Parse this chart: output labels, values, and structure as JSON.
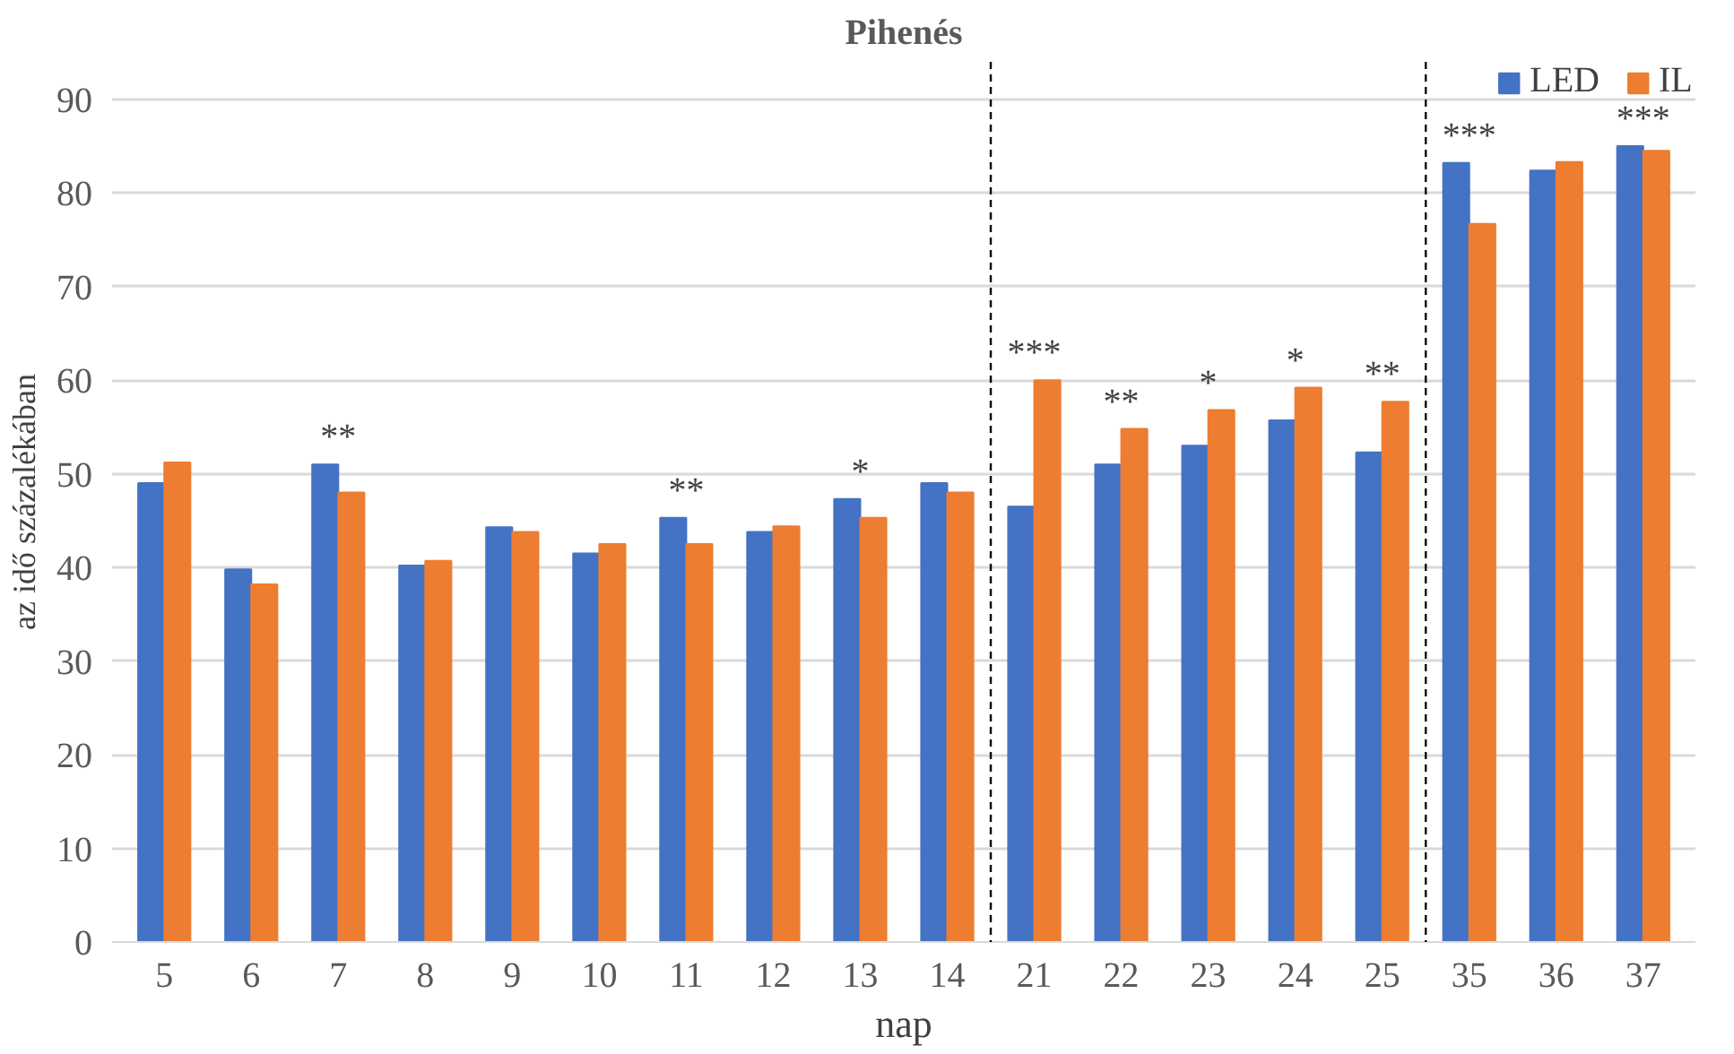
{
  "chart_data": {
    "type": "bar",
    "title": "Pihenés",
    "xlabel": "nap",
    "ylabel": "az idő százalékában",
    "categories": [
      "5",
      "6",
      "7",
      "8",
      "9",
      "10",
      "11",
      "12",
      "13",
      "14",
      "21",
      "22",
      "23",
      "24",
      "25",
      "35",
      "36",
      "37"
    ],
    "series": [
      {
        "name": "LED",
        "color": "#4472c4",
        "values": [
          49,
          39.8,
          51,
          40.2,
          44.3,
          41.5,
          45.3,
          43.8,
          47.3,
          49,
          46.5,
          51,
          53,
          55.7,
          52.3,
          83.2,
          82.4,
          85
        ]
      },
      {
        "name": "IL",
        "color": "#ed7d31",
        "values": [
          51.2,
          38.2,
          48,
          40.7,
          43.8,
          42.5,
          42.5,
          44.4,
          45.3,
          48,
          60,
          54.8,
          56.8,
          59.2,
          57.7,
          76.7,
          83.3,
          84.5
        ]
      }
    ],
    "ylim": [
      0,
      90
    ],
    "yticks": [
      0,
      10,
      20,
      30,
      40,
      50,
      60,
      70,
      80,
      90
    ],
    "grid": "y",
    "legend": "top right",
    "annotations": [
      {
        "text": "**",
        "x": "7",
        "y": 51
      },
      {
        "text": "**",
        "x": "11",
        "y": 45.3
      },
      {
        "text": "*",
        "x": "13",
        "y": 47.3
      },
      {
        "text": "***",
        "x": "21",
        "y": 60
      },
      {
        "text": "**",
        "x": "22",
        "y": 54.8
      },
      {
        "text": "*",
        "x": "23",
        "y": 56.8
      },
      {
        "text": "*",
        "x": "24",
        "y": 59.2
      },
      {
        "text": "**",
        "x": "25",
        "y": 57.7
      },
      {
        "text": "***",
        "x": "35",
        "y": 83.2
      },
      {
        "text": "***",
        "x": "37",
        "y": 85
      }
    ]
  }
}
